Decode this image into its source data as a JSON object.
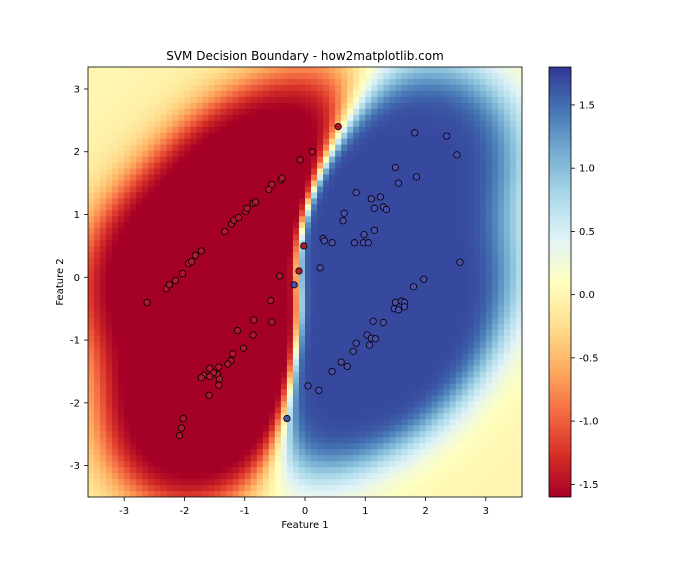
{
  "chart_data": {
    "type": "heatmap",
    "title": "SVM Decision Boundary - how2matplotlib.com",
    "xlabel": "Feature 1",
    "ylabel": "Feature 2",
    "xlim": [
      -3.6,
      3.6
    ],
    "ylim": [
      -3.5,
      3.35
    ],
    "xticks": [
      -3,
      -2,
      -1,
      0,
      1,
      2,
      3
    ],
    "yticks": [
      -3,
      -2,
      -1,
      0,
      1,
      2,
      3
    ],
    "grid": false,
    "colormap": "RdYlBu",
    "colorbar": {
      "range": [
        -1.6,
        1.8
      ],
      "ticks": [
        -1.5,
        -1.0,
        -0.5,
        0.0,
        0.5,
        1.0,
        1.5
      ],
      "tick_labels": [
        "-1.5",
        "-1.0",
        "-0.5",
        "0.0",
        "0.5",
        "1.0",
        "1.5"
      ]
    },
    "colors": {
      "low": "#a50026",
      "mid": "#fefdbe",
      "high": "#313695",
      "edge": "#000000"
    },
    "series": [
      {
        "class": 0,
        "color": "#b2182b",
        "points": [
          [
            -2.62,
            -0.4
          ],
          [
            -2.3,
            -0.18
          ],
          [
            -2.25,
            -0.12
          ],
          [
            -2.15,
            -0.05
          ],
          [
            -2.03,
            0.06
          ],
          [
            -1.93,
            0.22
          ],
          [
            -1.88,
            0.25
          ],
          [
            -1.82,
            0.35
          ],
          [
            -1.72,
            0.42
          ],
          [
            -1.33,
            0.73
          ],
          [
            -1.22,
            0.85
          ],
          [
            -1.18,
            0.91
          ],
          [
            -1.1,
            0.95
          ],
          [
            -0.98,
            1.05
          ],
          [
            -0.96,
            1.1
          ],
          [
            -0.86,
            1.18
          ],
          [
            -0.82,
            1.2
          ],
          [
            -0.6,
            1.4
          ],
          [
            -0.55,
            1.48
          ],
          [
            -0.4,
            1.55
          ],
          [
            -0.38,
            1.58
          ],
          [
            -0.08,
            1.87
          ],
          [
            0.12,
            2.0
          ],
          [
            0.55,
            2.4
          ],
          [
            -0.02,
            0.5
          ],
          [
            -0.42,
            0.02
          ],
          [
            -0.57,
            -0.37
          ],
          [
            -0.55,
            -0.71
          ],
          [
            -0.85,
            -0.68
          ],
          [
            -0.86,
            -0.92
          ],
          [
            -1.12,
            -0.85
          ],
          [
            -1.02,
            -1.13
          ],
          [
            -1.2,
            -1.22
          ],
          [
            -1.23,
            -1.33
          ],
          [
            -1.28,
            -1.38
          ],
          [
            -1.43,
            -1.43
          ],
          [
            -1.45,
            -1.55
          ],
          [
            -1.52,
            -1.52
          ],
          [
            -1.58,
            -1.45
          ],
          [
            -1.58,
            -1.58
          ],
          [
            -1.68,
            -1.56
          ],
          [
            -1.72,
            -1.6
          ],
          [
            -1.42,
            -1.62
          ],
          [
            -1.43,
            -1.72
          ],
          [
            -1.59,
            -1.88
          ],
          [
            -2.02,
            -2.25
          ],
          [
            -2.05,
            -2.4
          ],
          [
            -2.08,
            -2.52
          ],
          [
            -0.1,
            0.1
          ]
        ]
      },
      {
        "class": 1,
        "color": "#4a4ea8",
        "points": [
          [
            1.82,
            2.3
          ],
          [
            2.35,
            2.25
          ],
          [
            2.52,
            1.95
          ],
          [
            1.5,
            1.75
          ],
          [
            1.55,
            1.5
          ],
          [
            1.85,
            1.6
          ],
          [
            0.85,
            1.35
          ],
          [
            1.1,
            1.25
          ],
          [
            1.25,
            1.28
          ],
          [
            1.15,
            1.1
          ],
          [
            1.3,
            1.12
          ],
          [
            1.35,
            1.08
          ],
          [
            0.65,
            1.02
          ],
          [
            0.63,
            0.9
          ],
          [
            0.98,
            0.68
          ],
          [
            1.15,
            0.75
          ],
          [
            0.3,
            0.62
          ],
          [
            0.32,
            0.58
          ],
          [
            0.45,
            0.55
          ],
          [
            0.82,
            0.55
          ],
          [
            0.97,
            0.55
          ],
          [
            1.05,
            0.55
          ],
          [
            0.25,
            0.15
          ],
          [
            -0.18,
            -0.12
          ],
          [
            1.97,
            -0.03
          ],
          [
            2.57,
            0.24
          ],
          [
            1.5,
            -0.4
          ],
          [
            1.6,
            -0.38
          ],
          [
            1.65,
            -0.4
          ],
          [
            1.48,
            -0.5
          ],
          [
            1.55,
            -0.52
          ],
          [
            1.65,
            -0.47
          ],
          [
            1.13,
            -0.7
          ],
          [
            1.3,
            -0.72
          ],
          [
            1.03,
            -0.92
          ],
          [
            1.1,
            -0.97
          ],
          [
            1.17,
            -0.98
          ],
          [
            0.85,
            -1.05
          ],
          [
            1.07,
            -1.08
          ],
          [
            0.8,
            -1.18
          ],
          [
            0.6,
            -1.35
          ],
          [
            0.7,
            -1.42
          ],
          [
            0.45,
            -1.5
          ],
          [
            0.05,
            -1.73
          ],
          [
            0.23,
            -1.8
          ],
          [
            -0.3,
            -2.25
          ],
          [
            1.8,
            -0.15
          ]
        ]
      }
    ]
  }
}
